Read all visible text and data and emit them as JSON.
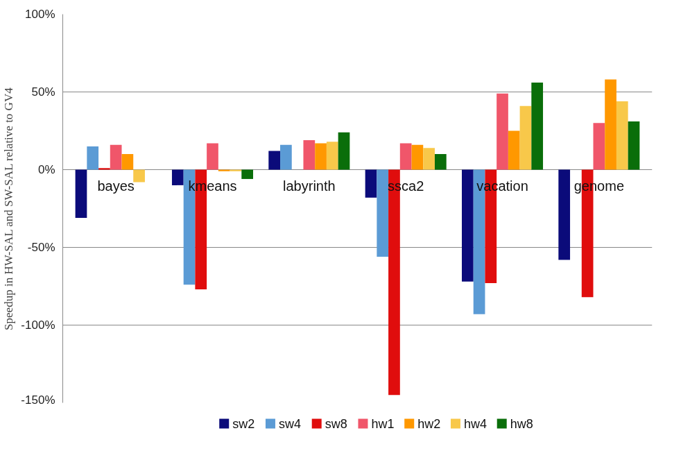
{
  "chart_data": {
    "type": "bar",
    "ylabel": "Speedup in HW-SAL and SW-SAL relative to GV4",
    "categories": [
      "bayes",
      "kmeans",
      "labyrinth",
      "ssca2",
      "vacation",
      "genome"
    ],
    "series": [
      {
        "name": "sw2",
        "color": "#0b0b7a",
        "values": [
          -31,
          -10,
          12,
          -18,
          -72,
          -58
        ]
      },
      {
        "name": "sw4",
        "color": "#5b9bd5",
        "values": [
          15,
          -74,
          16,
          -56,
          -93,
          0
        ]
      },
      {
        "name": "sw8",
        "color": "#e00d0d",
        "values": [
          1,
          -77,
          0,
          -145,
          -73,
          -82
        ]
      },
      {
        "name": "hw1",
        "color": "#f0566a",
        "values": [
          16,
          17,
          19,
          17,
          49,
          30
        ]
      },
      {
        "name": "hw2",
        "color": "#ff9800",
        "values": [
          10,
          -1,
          17,
          16,
          25,
          58
        ]
      },
      {
        "name": "hw4",
        "color": "#f8c84a",
        "values": [
          -8,
          -1,
          18,
          14,
          41,
          44
        ]
      },
      {
        "name": "hw8",
        "color": "#0a6e0a",
        "values": [
          0,
          -6,
          24,
          10,
          56,
          31
        ]
      }
    ],
    "ylim": [
      -150,
      100
    ],
    "yticks": [
      {
        "value": -150,
        "label": "-150%"
      },
      {
        "value": -100,
        "label": "-100%"
      },
      {
        "value": -50,
        "label": "-50%"
      },
      {
        "value": 0,
        "label": "0%"
      },
      {
        "value": 50,
        "label": "50%"
      },
      {
        "value": 100,
        "label": "100%"
      }
    ],
    "grid": "y",
    "legend": "bottom"
  }
}
